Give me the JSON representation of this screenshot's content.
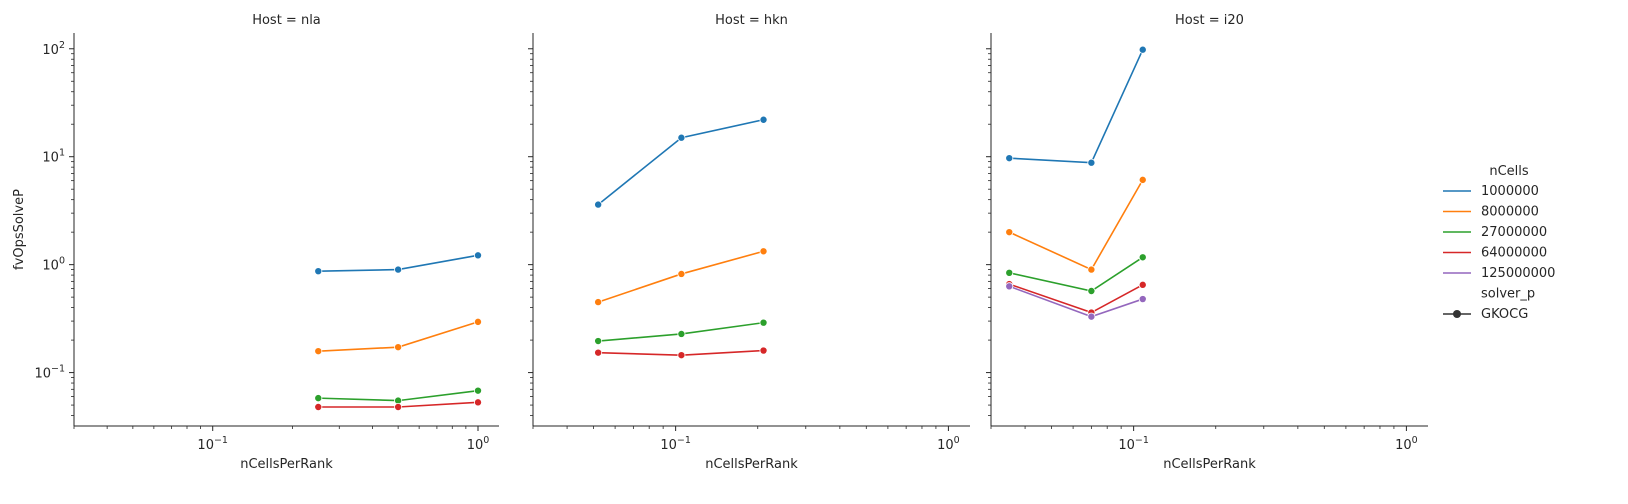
{
  "chart_data": [
    {
      "type": "line",
      "title": "Host = nla",
      "xlabel": "nCellsPerRank",
      "ylabel": "fvOpsSolveP",
      "xscale": "log",
      "yscale": "log",
      "xlim": [
        0.03,
        1.2
      ],
      "ylim": [
        0.032,
        140
      ],
      "x_tick_labels": [
        "10^-1",
        "10^0"
      ],
      "y_tick_labels": [
        "10^-1",
        "10^0",
        "10^1",
        "10^2"
      ],
      "series": [
        {
          "name": "1000000",
          "x": [
            0.25,
            0.5,
            1.0
          ],
          "y": [
            0.87,
            0.9,
            1.22
          ]
        },
        {
          "name": "8000000",
          "x": [
            0.25,
            0.5,
            1.0
          ],
          "y": [
            0.158,
            0.172,
            0.295
          ]
        },
        {
          "name": "27000000",
          "x": [
            0.25,
            0.5,
            1.0
          ],
          "y": [
            0.058,
            0.055,
            0.068
          ]
        },
        {
          "name": "64000000",
          "x": [
            0.25,
            0.5,
            1.0
          ],
          "y": [
            0.048,
            0.048,
            0.053
          ]
        }
      ]
    },
    {
      "type": "line",
      "title": "Host = hkn",
      "xlabel": "nCellsPerRank",
      "ylabel": "",
      "xscale": "log",
      "yscale": "log",
      "xlim": [
        0.03,
        1.2
      ],
      "ylim": [
        0.032,
        140
      ],
      "x_tick_labels": [
        "10^-1",
        "10^0"
      ],
      "series": [
        {
          "name": "1000000",
          "x": [
            0.052,
            0.105,
            0.21
          ],
          "y": [
            3.6,
            15.0,
            22.0
          ]
        },
        {
          "name": "8000000",
          "x": [
            0.052,
            0.105,
            0.21
          ],
          "y": [
            0.45,
            0.82,
            1.33
          ]
        },
        {
          "name": "27000000",
          "x": [
            0.052,
            0.105,
            0.21
          ],
          "y": [
            0.196,
            0.228,
            0.29
          ]
        },
        {
          "name": "64000000",
          "x": [
            0.052,
            0.105,
            0.21
          ],
          "y": [
            0.153,
            0.145,
            0.16
          ]
        }
      ]
    },
    {
      "type": "line",
      "title": "Host = i20",
      "xlabel": "nCellsPerRank",
      "ylabel": "",
      "xscale": "log",
      "yscale": "log",
      "xlim": [
        0.03,
        1.2
      ],
      "ylim": [
        0.032,
        140
      ],
      "x_tick_labels": [
        "10^-1",
        "10^0"
      ],
      "series": [
        {
          "name": "1000000",
          "x": [
            0.035,
            0.07,
            0.108
          ],
          "y": [
            9.7,
            8.8,
            98.0
          ]
        },
        {
          "name": "8000000",
          "x": [
            0.035,
            0.07,
            0.108
          ],
          "y": [
            2.0,
            0.9,
            6.1
          ]
        },
        {
          "name": "27000000",
          "x": [
            0.035,
            0.07,
            0.108
          ],
          "y": [
            0.84,
            0.57,
            1.17
          ]
        },
        {
          "name": "64000000",
          "x": [
            0.035,
            0.07,
            0.108
          ],
          "y": [
            0.66,
            0.36,
            0.65
          ]
        },
        {
          "name": "125000000",
          "x": [
            0.035,
            0.07,
            0.108
          ],
          "y": [
            0.63,
            0.33,
            0.48
          ]
        }
      ]
    }
  ],
  "legend": {
    "placement": "right",
    "hue_title": "nCells",
    "hue_entries": [
      "1000000",
      "8000000",
      "27000000",
      "64000000",
      "125000000"
    ],
    "style_title": "solver_p",
    "style_entries": [
      "GKOCG"
    ]
  },
  "colors": {
    "1000000": "#1f77b4",
    "8000000": "#ff7f0e",
    "27000000": "#2ca02c",
    "64000000": "#d62728",
    "125000000": "#9467bd",
    "GKOCG": "#333333"
  }
}
